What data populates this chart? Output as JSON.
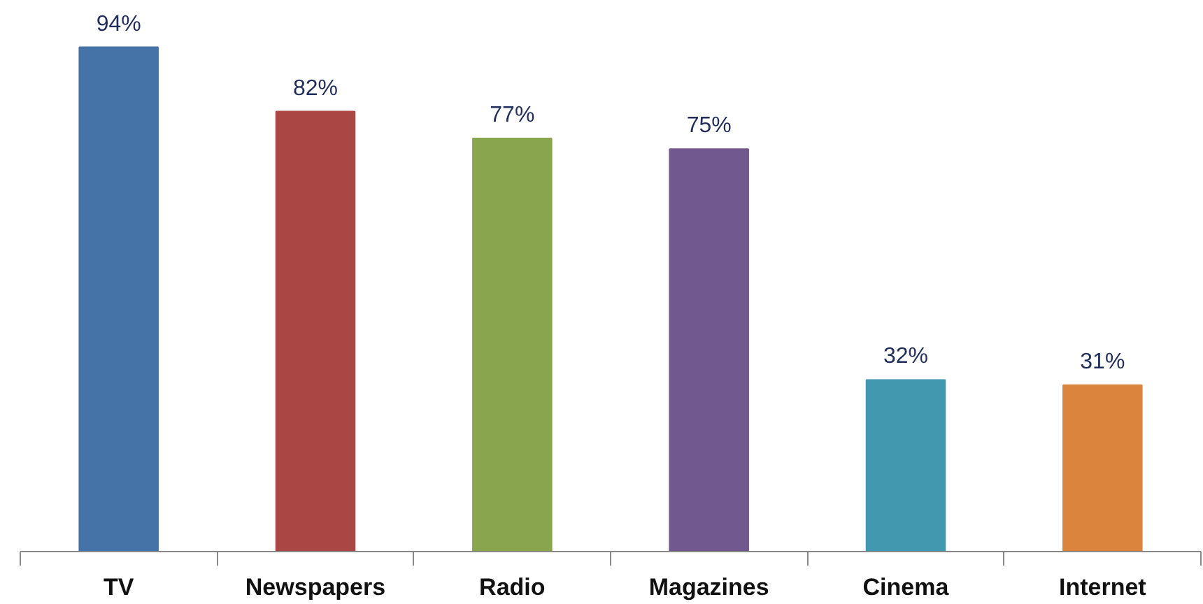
{
  "chart_data": {
    "type": "bar",
    "categories": [
      "TV",
      "Newspapers",
      "Radio",
      "Magazines",
      "Cinema",
      "Internet"
    ],
    "values": [
      94,
      82,
      77,
      75,
      32,
      31
    ],
    "colors": [
      "#4572a7",
      "#aa4643",
      "#89a54e",
      "#71588f",
      "#4198af",
      "#db843d"
    ],
    "value_labels": [
      "94%",
      "82%",
      "77%",
      "75%",
      "32%",
      "31%"
    ],
    "tick_labels": "x",
    "grid": false
  }
}
